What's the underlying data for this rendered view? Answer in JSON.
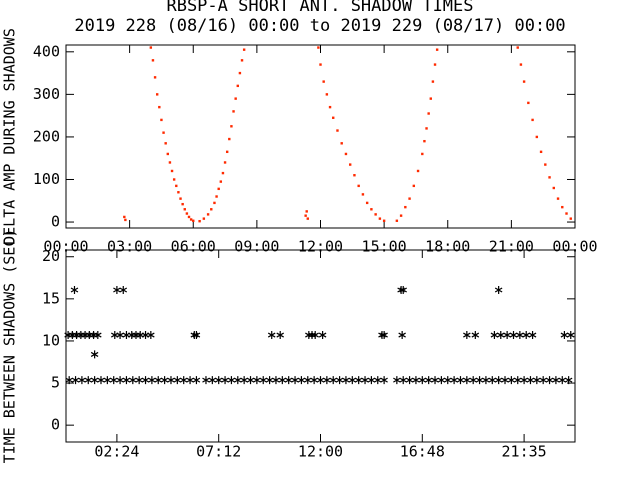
{
  "chart_data": [
    {
      "type": "scatter",
      "marker": "dot",
      "color": "#ff2a00",
      "title": "RBSP-A SHORT ANT. SHADOW TIMES",
      "subtitle": "2019 228 (08/16) 00:00 to 2019 229 (08/17) 00:00",
      "y_label": "DELTA AMP DURING SHADOWS",
      "xlim": [
        0,
        24
      ],
      "ylim": [
        -14,
        416
      ],
      "xticks": [
        {
          "value": 0,
          "label": "00:00"
        },
        {
          "value": 3,
          "label": "03:00"
        },
        {
          "value": 6,
          "label": "06:00"
        },
        {
          "value": 9,
          "label": "09:00"
        },
        {
          "value": 12,
          "label": "12:00"
        },
        {
          "value": 15,
          "label": "15:00"
        },
        {
          "value": 18,
          "label": "18:00"
        },
        {
          "value": 21,
          "label": "21:00"
        },
        {
          "value": 24,
          "label": "00:00"
        }
      ],
      "yticks": [
        0,
        100,
        200,
        300,
        400
      ],
      "x": [
        4.0,
        4.1,
        4.2,
        4.3,
        4.4,
        4.5,
        4.6,
        4.7,
        4.8,
        4.9,
        5.0,
        5.1,
        5.2,
        5.3,
        5.4,
        5.5,
        5.6,
        5.7,
        5.8,
        5.9,
        6.0,
        6.3,
        6.5,
        6.7,
        6.85,
        7.0,
        7.1,
        7.2,
        7.3,
        7.4,
        7.5,
        7.6,
        7.7,
        7.8,
        7.9,
        8.0,
        8.1,
        8.2,
        8.3,
        8.4,
        11.3,
        11.35,
        11.4,
        11.9,
        12.0,
        12.15,
        12.3,
        12.45,
        12.6,
        12.8,
        13.0,
        13.2,
        13.4,
        13.6,
        13.8,
        14.0,
        14.2,
        14.4,
        14.6,
        14.8,
        15.0,
        15.6,
        15.8,
        16.0,
        16.2,
        16.4,
        16.6,
        16.8,
        16.9,
        17.0,
        17.1,
        17.2,
        17.3,
        17.4,
        17.5,
        21.3,
        21.45,
        21.6,
        21.8,
        22.0,
        22.2,
        22.4,
        22.6,
        22.8,
        23.0,
        23.2,
        23.4,
        23.6,
        23.8,
        2.75,
        2.8
      ],
      "values": [
        410,
        380,
        340,
        300,
        270,
        240,
        210,
        185,
        160,
        140,
        120,
        100,
        85,
        70,
        55,
        42,
        30,
        20,
        12,
        6,
        3,
        2,
        8,
        18,
        30,
        45,
        60,
        78,
        95,
        115,
        140,
        165,
        195,
        225,
        260,
        290,
        320,
        350,
        380,
        405,
        15,
        25,
        8,
        410,
        370,
        330,
        300,
        270,
        245,
        215,
        185,
        160,
        135,
        110,
        85,
        65,
        45,
        30,
        18,
        8,
        3,
        3,
        15,
        35,
        55,
        85,
        120,
        160,
        190,
        220,
        255,
        290,
        330,
        370,
        405,
        410,
        370,
        330,
        280,
        240,
        200,
        165,
        135,
        105,
        80,
        55,
        35,
        20,
        8,
        12,
        5
      ]
    },
    {
      "type": "scatter",
      "marker": "asterisk",
      "color": "#000000",
      "y_label": "TIME BETWEEN SHADOWS (SEC)",
      "xlim": [
        0,
        24
      ],
      "ylim": [
        -2,
        20.8
      ],
      "xticks": [
        {
          "value": 2.4,
          "label": "02:24"
        },
        {
          "value": 7.2,
          "label": "07:12"
        },
        {
          "value": 12,
          "label": "12:00"
        },
        {
          "value": 16.8,
          "label": "16:48"
        },
        {
          "value": 21.6,
          "label": "21:35"
        }
      ],
      "yticks": [
        0,
        5,
        10,
        15,
        20
      ],
      "x": [
        0.15,
        0.45,
        0.75,
        1.05,
        1.35,
        1.65,
        1.95,
        2.25,
        2.55,
        2.85,
        3.15,
        3.45,
        3.75,
        4.05,
        4.35,
        4.65,
        4.95,
        5.25,
        5.55,
        5.85,
        6.15,
        6.6,
        6.9,
        7.2,
        7.5,
        7.8,
        8.1,
        8.4,
        8.7,
        9.0,
        9.3,
        9.6,
        9.9,
        10.2,
        10.5,
        10.8,
        11.1,
        11.4,
        11.7,
        12.0,
        12.3,
        12.6,
        12.9,
        13.2,
        13.5,
        13.8,
        14.1,
        14.4,
        14.7,
        15.0,
        15.6,
        15.9,
        16.2,
        16.5,
        16.8,
        17.1,
        17.4,
        17.7,
        18.0,
        18.3,
        18.6,
        18.9,
        19.2,
        19.5,
        19.8,
        20.1,
        20.4,
        20.7,
        21.0,
        21.3,
        21.6,
        21.9,
        22.2,
        22.5,
        22.8,
        23.1,
        23.4,
        23.7,
        0.1,
        0.3,
        0.5,
        0.7,
        0.9,
        1.1,
        1.3,
        1.5,
        2.3,
        2.55,
        2.85,
        3.1,
        3.3,
        3.5,
        3.75,
        4.0,
        6.05,
        6.15,
        9.7,
        10.1,
        11.45,
        11.6,
        11.75,
        12.1,
        14.9,
        15.0,
        15.85,
        18.9,
        19.3,
        20.2,
        20.5,
        20.8,
        21.1,
        21.4,
        21.7,
        22.0,
        23.5,
        23.8,
        0.4,
        2.4,
        2.7,
        15.8,
        15.9,
        20.4,
        1.35
      ],
      "values": [
        5.35,
        5.35,
        5.35,
        5.35,
        5.35,
        5.35,
        5.35,
        5.35,
        5.35,
        5.35,
        5.35,
        5.35,
        5.35,
        5.35,
        5.35,
        5.35,
        5.35,
        5.35,
        5.35,
        5.35,
        5.35,
        5.35,
        5.35,
        5.35,
        5.35,
        5.35,
        5.35,
        5.35,
        5.35,
        5.35,
        5.35,
        5.35,
        5.35,
        5.35,
        5.35,
        5.35,
        5.35,
        5.35,
        5.35,
        5.35,
        5.35,
        5.35,
        5.35,
        5.35,
        5.35,
        5.35,
        5.35,
        5.35,
        5.35,
        5.35,
        5.35,
        5.35,
        5.35,
        5.35,
        5.35,
        5.35,
        5.35,
        5.35,
        5.35,
        5.35,
        5.35,
        5.35,
        5.35,
        5.35,
        5.35,
        5.35,
        5.35,
        5.35,
        5.35,
        5.35,
        5.35,
        5.35,
        5.35,
        5.35,
        5.35,
        5.35,
        5.35,
        5.35,
        10.7,
        10.7,
        10.7,
        10.7,
        10.7,
        10.7,
        10.7,
        10.7,
        10.7,
        10.7,
        10.7,
        10.7,
        10.7,
        10.7,
        10.7,
        10.7,
        10.7,
        10.7,
        10.7,
        10.7,
        10.7,
        10.7,
        10.7,
        10.7,
        10.7,
        10.7,
        10.7,
        10.7,
        10.7,
        10.7,
        10.7,
        10.7,
        10.7,
        10.7,
        10.7,
        10.7,
        10.7,
        10.7,
        16.05,
        16.05,
        16.05,
        16.05,
        16.05,
        16.05,
        8.4
      ]
    }
  ]
}
